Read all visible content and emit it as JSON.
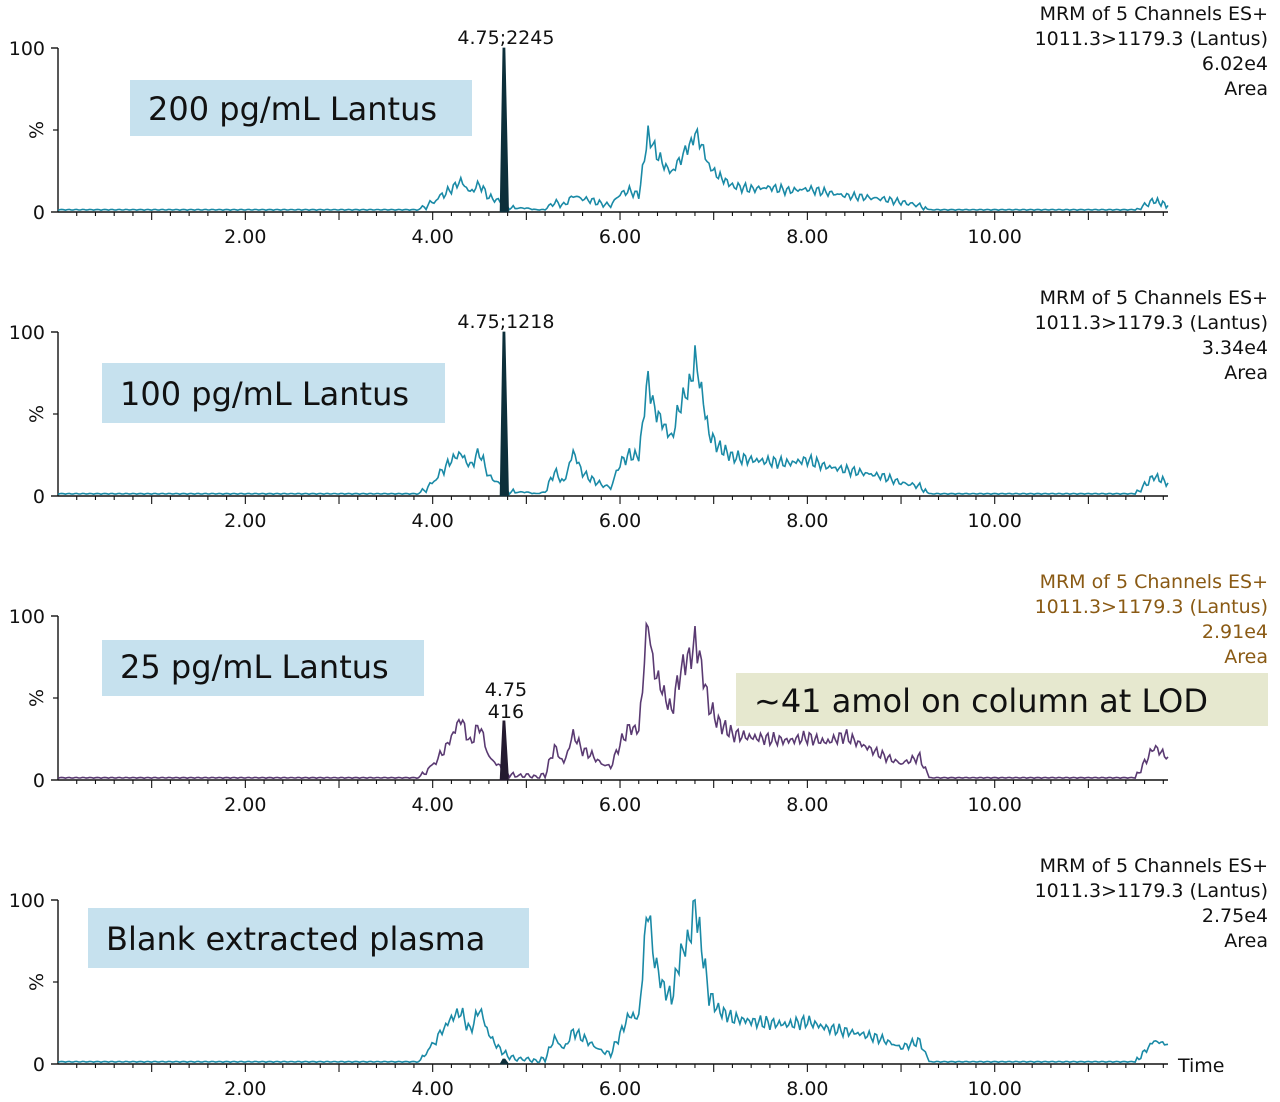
{
  "chart_data": [
    {
      "type": "line",
      "sample_label": "200 pg/mL Lantus",
      "info": [
        "MRM of 5 Channels ES+",
        "1011.3>1179.3 (Lantus)",
        "6.02e4",
        "Area"
      ],
      "info_color": "#111111",
      "line_color": "#1a8aa6",
      "peak_fill": "#0d2f3a",
      "ylabel": "%",
      "y_ticks": [
        "0",
        "100"
      ],
      "x_ticks": [
        "2.00",
        "4.00",
        "6.00",
        "8.00",
        "10.00"
      ],
      "x_tick_values": [
        2,
        4,
        6,
        8,
        10
      ],
      "xlim": [
        0,
        11.85
      ],
      "ylim": [
        0,
        100
      ],
      "peak_annotation": [
        "4.75;2245"
      ],
      "peak": {
        "rt": 4.75,
        "height": 100,
        "width": 0.06
      },
      "series": [
        {
          "x": [
            0,
            0.5,
            1,
            1.5,
            2,
            2.5,
            3,
            3.5,
            3.85,
            3.95,
            4.1,
            4.2,
            4.3,
            4.4,
            4.5,
            4.6,
            4.7,
            4.8,
            4.9,
            5.0,
            5.1,
            5.2,
            5.3,
            5.4,
            5.5,
            5.6,
            5.7,
            5.8,
            5.9,
            6.0,
            6.1,
            6.2,
            6.3,
            6.35,
            6.45,
            6.55,
            6.65,
            6.72,
            6.8,
            6.85,
            6.95,
            7.05,
            7.2,
            7.4,
            7.6,
            7.8,
            8.0,
            8.2,
            8.4,
            8.6,
            8.8,
            9.0,
            9.2,
            9.3,
            9.4,
            9.6,
            10,
            10.5,
            11,
            11.5,
            11.7,
            11.85
          ],
          "y": [
            1,
            1,
            1,
            1,
            1,
            1,
            1,
            1,
            1,
            4,
            10,
            14,
            19,
            12,
            17,
            9,
            7,
            3,
            2,
            2,
            1,
            1,
            6,
            4,
            10,
            8,
            7,
            5,
            4,
            11,
            13,
            10,
            48,
            40,
            30,
            24,
            33,
            38,
            47,
            44,
            28,
            22,
            16,
            14,
            15,
            13,
            14,
            12,
            10,
            9,
            8,
            6,
            4,
            1,
            1,
            1,
            1,
            1,
            1,
            1,
            7,
            4
          ]
        }
      ]
    },
    {
      "type": "line",
      "sample_label": "100 pg/mL Lantus",
      "info": [
        "MRM of 5 Channels ES+",
        "1011.3>1179.3 (Lantus)",
        "3.34e4",
        "Area"
      ],
      "info_color": "#111111",
      "line_color": "#1a8aa6",
      "peak_fill": "#0d2f3a",
      "ylabel": "%",
      "y_ticks": [
        "0",
        "100"
      ],
      "x_ticks": [
        "2.00",
        "4.00",
        "6.00",
        "8.00",
        "10.00"
      ],
      "x_tick_values": [
        2,
        4,
        6,
        8,
        10
      ],
      "xlim": [
        0,
        11.85
      ],
      "ylim": [
        0,
        100
      ],
      "peak_annotation": [
        "4.75;1218"
      ],
      "peak": {
        "rt": 4.75,
        "height": 100,
        "width": 0.06
      },
      "series": [
        {
          "x": [
            0,
            0.5,
            1,
            1.5,
            2,
            2.5,
            3,
            3.5,
            3.85,
            3.95,
            4.1,
            4.2,
            4.3,
            4.4,
            4.5,
            4.6,
            4.7,
            4.8,
            4.9,
            5.0,
            5.1,
            5.2,
            5.3,
            5.4,
            5.5,
            5.6,
            5.7,
            5.8,
            5.9,
            6.0,
            6.1,
            6.2,
            6.3,
            6.35,
            6.45,
            6.55,
            6.65,
            6.72,
            6.8,
            6.85,
            6.95,
            7.05,
            7.2,
            7.4,
            7.6,
            7.8,
            8.0,
            8.2,
            8.4,
            8.6,
            8.8,
            9.0,
            9.2,
            9.3,
            9.4,
            9.6,
            10,
            10.5,
            11,
            11.5,
            11.7,
            11.85
          ],
          "y": [
            1,
            1,
            1,
            1,
            1,
            1,
            1,
            1,
            1,
            5,
            15,
            22,
            26,
            18,
            27,
            12,
            8,
            3,
            2,
            2,
            1,
            2,
            15,
            8,
            27,
            14,
            10,
            7,
            5,
            20,
            25,
            24,
            73,
            55,
            45,
            35,
            58,
            62,
            83,
            70,
            38,
            30,
            24,
            22,
            21,
            20,
            22,
            18,
            16,
            14,
            12,
            8,
            6,
            1,
            1,
            1,
            1,
            1,
            1,
            1,
            12,
            8
          ]
        }
      ]
    },
    {
      "type": "line",
      "sample_label": "25 pg/mL Lantus",
      "info": [
        "MRM of 5 Channels ES+",
        "1011.3>1179.3 (Lantus)",
        "2.91e4",
        "Area"
      ],
      "info_color": "#8a5a14",
      "line_color": "#5a3a72",
      "peak_fill": "#241a30",
      "ylabel": "%",
      "y_ticks": [
        "0",
        "100"
      ],
      "x_ticks": [
        "2.00",
        "4.00",
        "6.00",
        "8.00",
        "10.00"
      ],
      "x_tick_values": [
        2,
        4,
        6,
        8,
        10
      ],
      "xlim": [
        0,
        11.85
      ],
      "ylim": [
        0,
        100
      ],
      "peak_annotation": [
        "4.75",
        "416"
      ],
      "peak": {
        "rt": 4.75,
        "height": 36,
        "width": 0.06
      },
      "annotation": "~41 amol  on column at LOD",
      "annotation_bg": "#e6e8cf",
      "series": [
        {
          "x": [
            0,
            0.5,
            1,
            1.5,
            2,
            2.5,
            3,
            3.5,
            3.85,
            3.95,
            4.1,
            4.2,
            4.3,
            4.4,
            4.5,
            4.6,
            4.7,
            4.8,
            4.9,
            5.0,
            5.1,
            5.2,
            5.3,
            5.4,
            5.5,
            5.6,
            5.7,
            5.8,
            5.9,
            6.0,
            6.1,
            6.2,
            6.3,
            6.35,
            6.45,
            6.55,
            6.65,
            6.72,
            6.8,
            6.85,
            6.95,
            7.05,
            7.2,
            7.4,
            7.6,
            7.8,
            8.0,
            8.2,
            8.4,
            8.6,
            8.8,
            9.0,
            9.2,
            9.3,
            9.4,
            9.6,
            10,
            10.5,
            11,
            11.5,
            11.7,
            11.85
          ],
          "y": [
            1,
            1,
            1,
            1,
            1,
            1,
            1,
            1,
            1,
            6,
            16,
            26,
            38,
            22,
            34,
            14,
            9,
            4,
            2,
            3,
            2,
            3,
            20,
            10,
            28,
            18,
            15,
            10,
            8,
            22,
            32,
            30,
            100,
            70,
            55,
            42,
            68,
            72,
            83,
            75,
            45,
            35,
            28,
            26,
            25,
            24,
            26,
            23,
            27,
            21,
            15,
            10,
            14,
            1,
            1,
            1,
            1,
            1,
            1,
            1,
            20,
            14
          ]
        }
      ]
    },
    {
      "type": "line",
      "sample_label": "Blank extracted plasma",
      "info": [
        "MRM of 5 Channels ES+",
        "1011.3>1179.3 (Lantus)",
        "2.75e4",
        "Area"
      ],
      "info_color": "#111111",
      "line_color": "#1a8aa6",
      "peak_fill": "#0d2f3a",
      "ylabel": "%",
      "y_ticks": [
        "0",
        "100"
      ],
      "x_ticks": [
        "2.00",
        "4.00",
        "6.00",
        "8.00",
        "10.00"
      ],
      "x_tick_values": [
        2,
        4,
        6,
        8,
        10
      ],
      "xlim": [
        0,
        11.85
      ],
      "ylim": [
        0,
        100
      ],
      "peak_annotation": [],
      "peak": {
        "rt": 4.75,
        "height": 3,
        "width": 0.06
      },
      "xlabel": "Time",
      "series": [
        {
          "x": [
            0,
            0.5,
            1,
            1.5,
            2,
            2.5,
            3,
            3.5,
            3.85,
            3.95,
            4.1,
            4.2,
            4.3,
            4.4,
            4.5,
            4.6,
            4.7,
            4.8,
            4.9,
            5.0,
            5.1,
            5.2,
            5.3,
            5.4,
            5.5,
            5.6,
            5.7,
            5.8,
            5.9,
            6.0,
            6.1,
            6.2,
            6.3,
            6.35,
            6.45,
            6.55,
            6.65,
            6.72,
            6.8,
            6.85,
            6.95,
            7.05,
            7.2,
            7.4,
            7.6,
            7.8,
            8.0,
            8.2,
            8.4,
            8.6,
            8.8,
            9.0,
            9.2,
            9.3,
            9.4,
            9.6,
            10,
            10.5,
            11,
            11.5,
            11.7,
            11.85
          ],
          "y": [
            1,
            1,
            1,
            1,
            1,
            1,
            1,
            1,
            1,
            8,
            20,
            28,
            32,
            20,
            34,
            18,
            10,
            5,
            3,
            3,
            2,
            3,
            16,
            9,
            20,
            16,
            12,
            8,
            6,
            18,
            30,
            28,
            100,
            68,
            48,
            40,
            68,
            72,
            96,
            80,
            42,
            33,
            28,
            26,
            25,
            24,
            26,
            22,
            20,
            18,
            15,
            10,
            14,
            1,
            1,
            1,
            1,
            1,
            1,
            1,
            14,
            12
          ]
        }
      ]
    }
  ]
}
